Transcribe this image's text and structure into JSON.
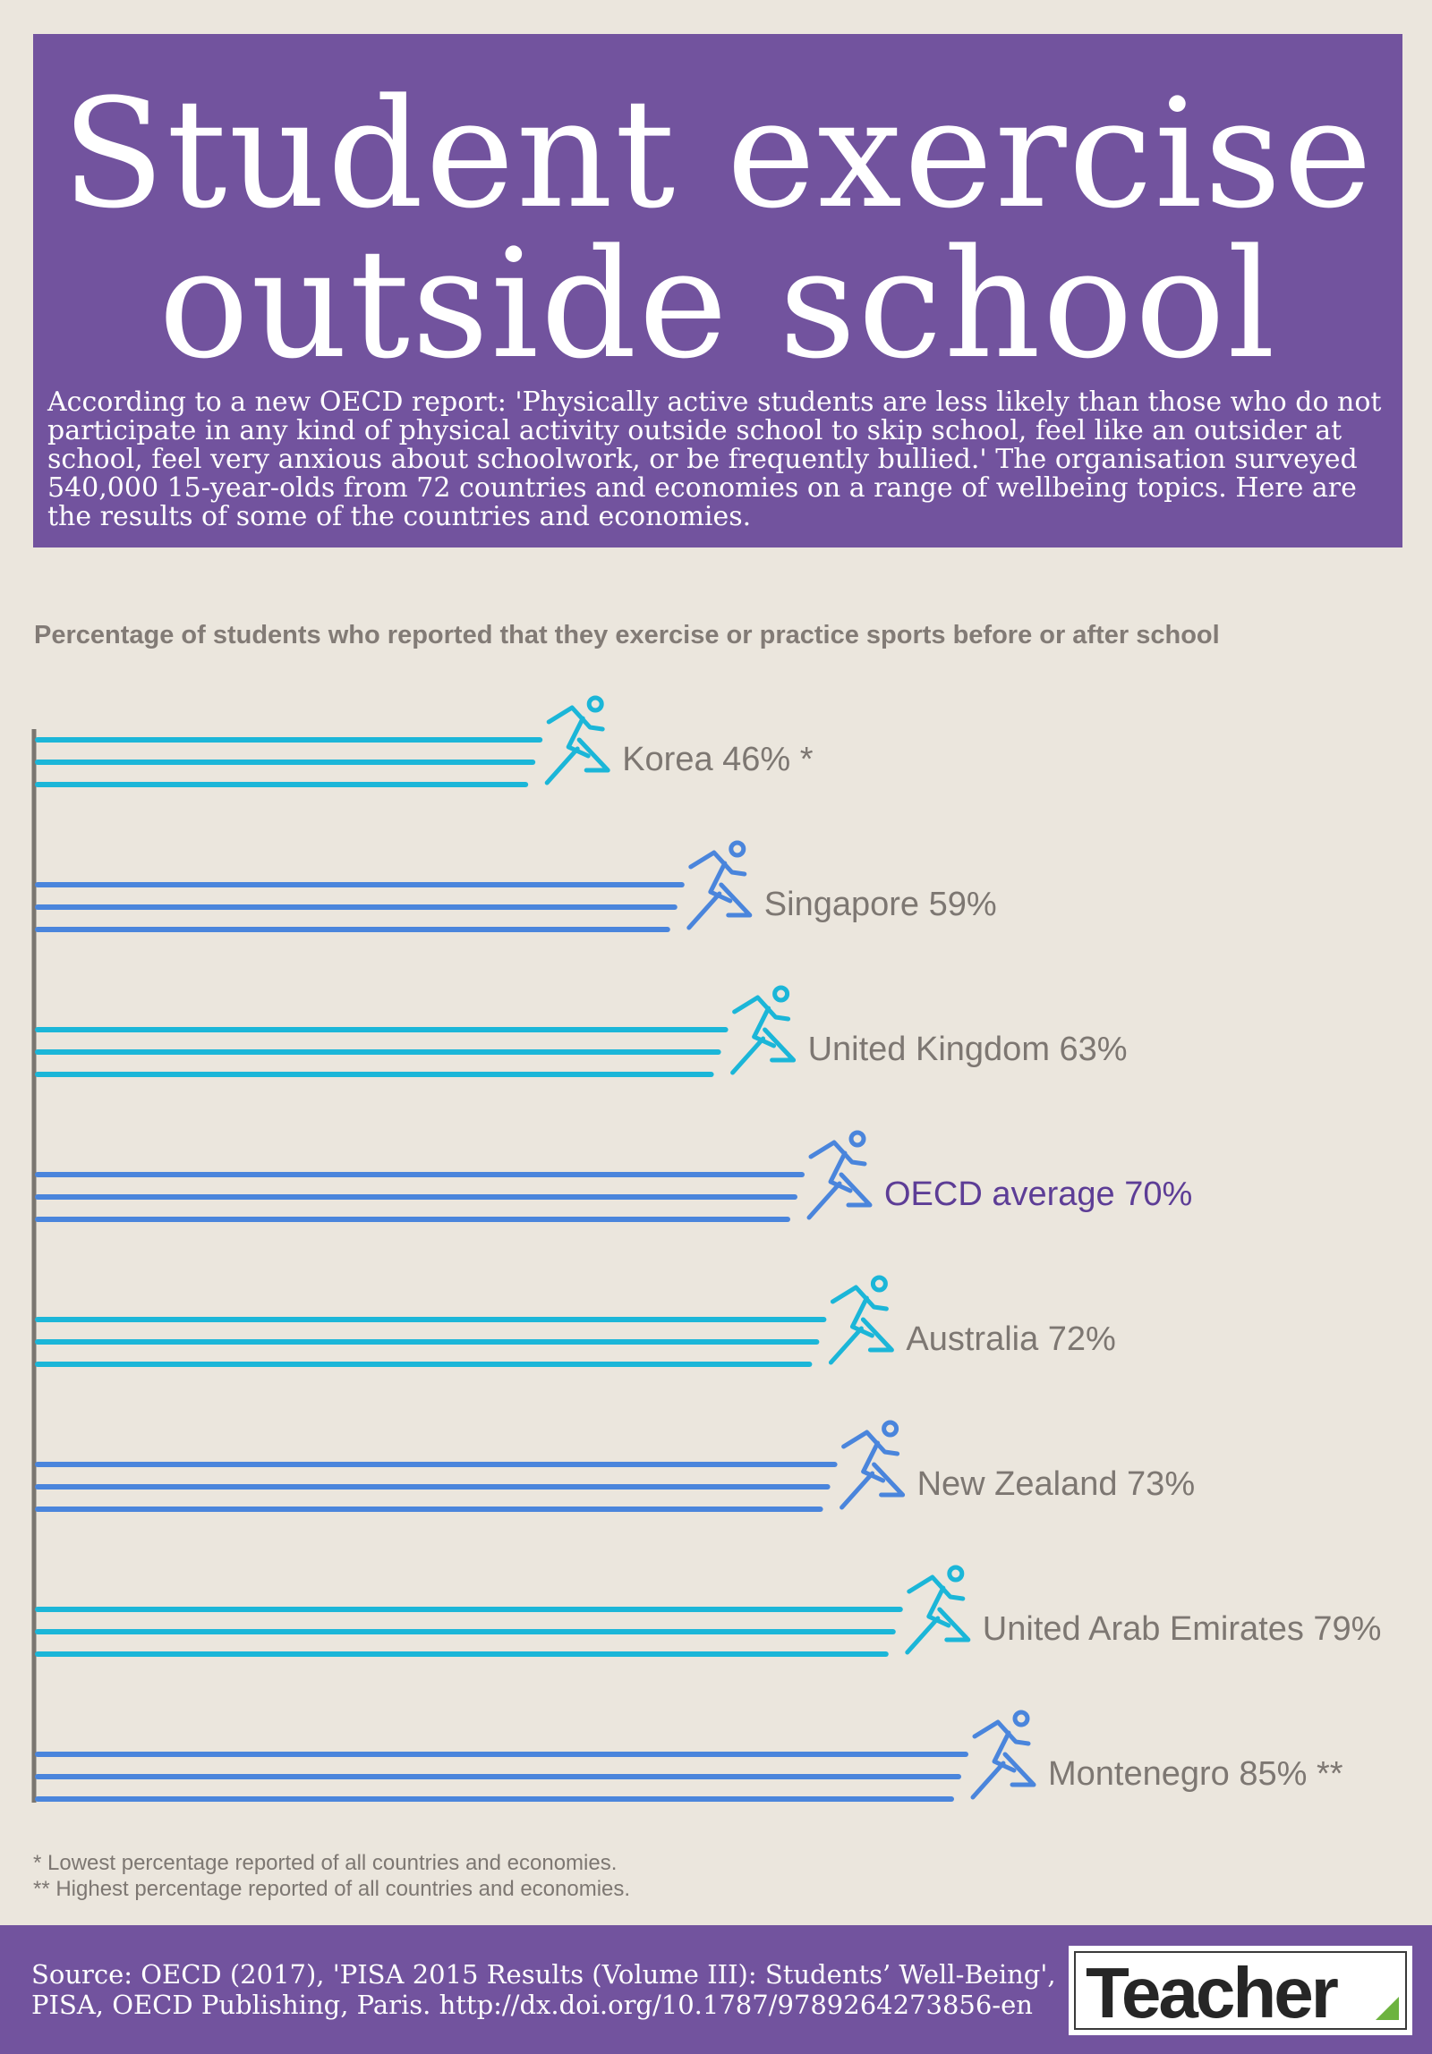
{
  "header": {
    "title_line1": "Student exercise",
    "title_line2": "outside school",
    "intro": "According to a new OECD report: 'Physically active students are less likely than those who do not participate in any kind of physical activity outside school to skip school, feel like an outsider at school, feel very anxious about schoolwork, or be frequently bullied.' The organisation surveyed 540,000 15-year-olds from 72 countries and economies on a range of wellbeing topics. Here are the results of some of the countries and economies."
  },
  "chart_data": {
    "type": "bar",
    "orientation": "horizontal",
    "title": "Percentage of students who reported that they exercise or practice sports before or after school",
    "categories": [
      "Korea",
      "Singapore",
      "United Kingdom",
      "OECD average",
      "Australia",
      "New Zealand",
      "United Arab Emirates",
      "Montenegro"
    ],
    "values": [
      46,
      59,
      63,
      70,
      72,
      73,
      79,
      85
    ],
    "labels": [
      "Korea 46% *",
      "Singapore 59%",
      "United Kingdom 63%",
      "OECD average 70%",
      "Australia 72%",
      "New Zealand 73%",
      "United Arab Emirates 79%",
      "Montenegro 85% **"
    ],
    "bar_colors": [
      "#1bb6d8",
      "#4a85dc",
      "#1bb6d8",
      "#4a85dc",
      "#1bb6d8",
      "#4a85dc",
      "#1bb6d8",
      "#4a85dc"
    ],
    "label_colors": [
      "#7d7772",
      "#7d7772",
      "#7d7772",
      "#5d3d96",
      "#7d7772",
      "#7d7772",
      "#7d7772",
      "#7d7772"
    ],
    "icon": "runner-icon",
    "grid": false
  },
  "footnotes": {
    "lowest": "*  Lowest percentage reported of all countries and economies.",
    "highest": "** Highest percentage reported of all countries and economies."
  },
  "footer": {
    "source_line1": "Source: OECD (2017), 'PISA 2015 Results (Volume III): Students’ Well-Being',",
    "source_line2": "PISA, OECD Publishing, Paris. http://dx.doi.org/10.1787/9789264273856-en",
    "logo": "Teacher"
  },
  "colors": {
    "header_bg": "#72539e",
    "page_bg": "#ebe6dd",
    "cyan_series": "#1bb6d8",
    "blue_series": "#4a85dc",
    "highlight_label": "#5d3d96"
  }
}
